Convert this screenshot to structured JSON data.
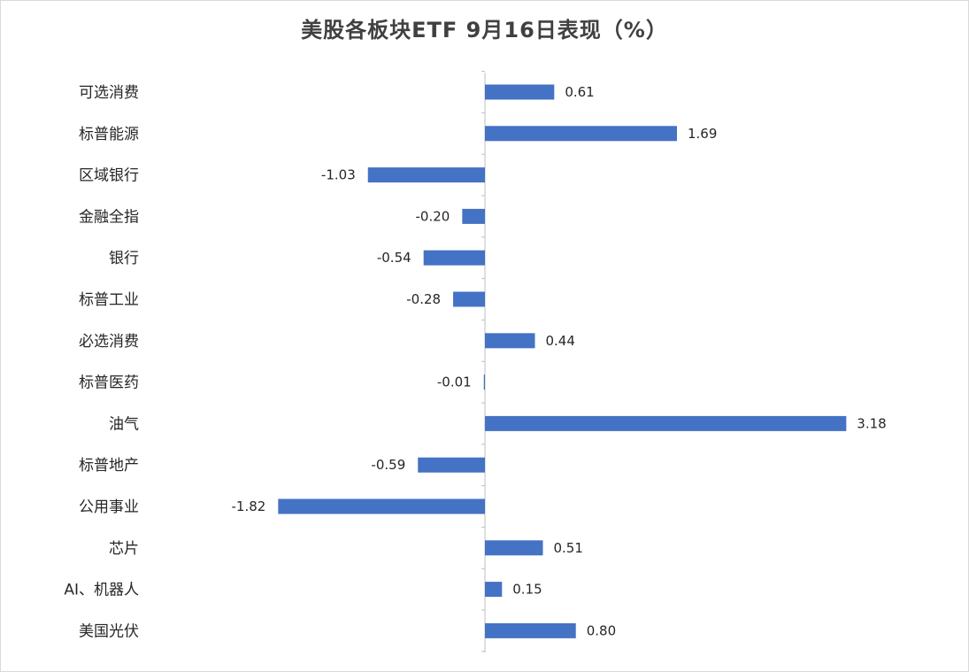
{
  "chart_data": {
    "type": "bar",
    "orientation": "horizontal",
    "title": "美股各板块ETF  9月16日表现（%）",
    "categories": [
      "可选消费",
      "标普能源",
      "区域银行",
      "金融全指",
      "银行",
      "标普工业",
      "必选消费",
      "标普医药",
      "油气",
      "标普地产",
      "公用事业",
      "芯片",
      "AI、机器人",
      "美国光伏"
    ],
    "values": [
      0.61,
      1.69,
      -1.03,
      -0.2,
      -0.54,
      -0.28,
      0.44,
      -0.01,
      3.18,
      -0.59,
      -1.82,
      0.51,
      0.15,
      0.8
    ],
    "value_labels": [
      "0.61",
      "1.69",
      "-1.03",
      "-0.20",
      "-0.54",
      "-0.28",
      "0.44",
      "-0.01",
      "3.18",
      "-0.59",
      "-1.82",
      "0.51",
      "0.15",
      "0.80"
    ],
    "xlim": [
      -1.82,
      3.18
    ],
    "grid": false,
    "legend": "none",
    "bar_color": "#4472c4",
    "axis_color": "#bfbfbf"
  }
}
